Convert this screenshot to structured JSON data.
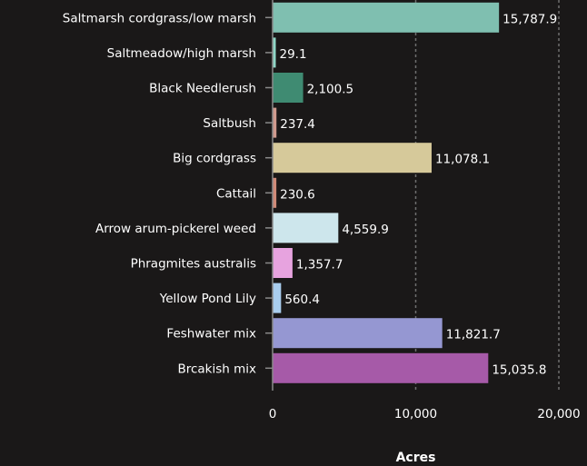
{
  "chart_data": {
    "type": "bar",
    "orientation": "horizontal",
    "categories": [
      "Saltmarsh cordgrass/low marsh",
      "Saltmeadow/high marsh",
      "Black Needlerush",
      "Saltbush",
      "Big cordgrass",
      "Cattail",
      "Arrow arum-pickerel weed",
      "Phragmites australis",
      "Yellow Pond Lily",
      "Feshwater mix",
      "Brcakish mix"
    ],
    "values": [
      15787.9,
      29.1,
      2100.5,
      237.4,
      11078.1,
      230.6,
      4559.9,
      1357.7,
      560.4,
      11821.7,
      15035.8
    ],
    "value_labels": [
      "15,787.9",
      "29.1",
      "2,100.5",
      "237.4",
      "11,078.1",
      "230.6",
      "4,559.9",
      "1,357.7",
      "560.4",
      "11,821.7",
      "15,035.8"
    ],
    "colors": [
      "#7fbfb0",
      "#8fd6c6",
      "#3f8b72",
      "#d09a8e",
      "#d6c99a",
      "#d08a78",
      "#cde6ec",
      "#e7a3df",
      "#a9cdee",
      "#9597d2",
      "#a65aa8"
    ],
    "xlim": [
      0,
      20000
    ],
    "xticks": [
      0,
      10000,
      20000
    ],
    "xtick_labels": [
      "0",
      "10,000",
      "20,000"
    ],
    "xlabel": "Acres",
    "ylabel": "",
    "title": "",
    "grid": true
  }
}
